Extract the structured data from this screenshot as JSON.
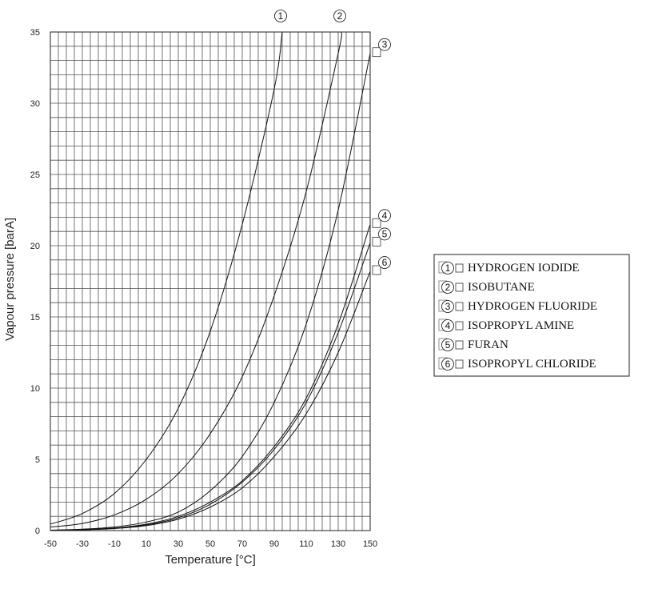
{
  "chart_data": {
    "type": "line",
    "title": "",
    "xlabel": "Temperature [°C]",
    "ylabel": "Vapour pressure [barA]",
    "xlim": [
      -50,
      150
    ],
    "ylim": [
      0,
      35
    ],
    "x_ticks": [
      -50,
      -30,
      -10,
      10,
      30,
      50,
      70,
      90,
      110,
      130,
      150
    ],
    "y_ticks": [
      0,
      5,
      10,
      15,
      20,
      25,
      30,
      35
    ],
    "grid": true,
    "legend_position": "right",
    "series": [
      {
        "name": "HYDROGEN IODIDE",
        "marker": "1",
        "x": [
          -50,
          -30,
          -10,
          10,
          30,
          50,
          70,
          90,
          95
        ],
        "y": [
          0.45,
          1.2,
          2.6,
          5.0,
          8.6,
          14.0,
          21.5,
          31.0,
          35.0
        ]
      },
      {
        "name": "ISOBUTANE",
        "marker": "2",
        "x": [
          -50,
          -30,
          -10,
          10,
          30,
          50,
          70,
          90,
          110,
          130,
          132
        ],
        "y": [
          0.25,
          0.5,
          1.1,
          2.2,
          4.0,
          6.8,
          10.8,
          16.5,
          23.8,
          33.5,
          35.0
        ]
      },
      {
        "name": "HYDROGEN FLUORIDE",
        "marker": "3",
        "x": [
          -50,
          -30,
          -10,
          10,
          30,
          50,
          70,
          90,
          110,
          130,
          150
        ],
        "y": [
          0.03,
          0.1,
          0.25,
          0.6,
          1.3,
          2.8,
          5.2,
          9.0,
          14.5,
          22.5,
          33.5
        ]
      },
      {
        "name": "ISOPROPYL AMINE",
        "marker": "4",
        "x": [
          -50,
          -30,
          -10,
          10,
          30,
          50,
          70,
          90,
          110,
          130,
          150
        ],
        "y": [
          0.02,
          0.07,
          0.18,
          0.45,
          1.0,
          2.0,
          3.5,
          5.9,
          9.3,
          14.5,
          21.5
        ]
      },
      {
        "name": "FURAN",
        "marker": "5",
        "x": [
          -50,
          -30,
          -10,
          10,
          30,
          50,
          70,
          90,
          110,
          130,
          150
        ],
        "y": [
          0.02,
          0.06,
          0.16,
          0.4,
          0.9,
          1.85,
          3.4,
          5.7,
          9.0,
          13.9,
          20.2
        ]
      },
      {
        "name": "ISOPROPYL CHLORIDE",
        "marker": "6",
        "x": [
          -50,
          -30,
          -10,
          10,
          30,
          50,
          70,
          90,
          110,
          130,
          150
        ],
        "y": [
          0.02,
          0.05,
          0.14,
          0.35,
          0.8,
          1.65,
          3.0,
          5.2,
          8.2,
          12.5,
          18.2
        ]
      }
    ]
  }
}
